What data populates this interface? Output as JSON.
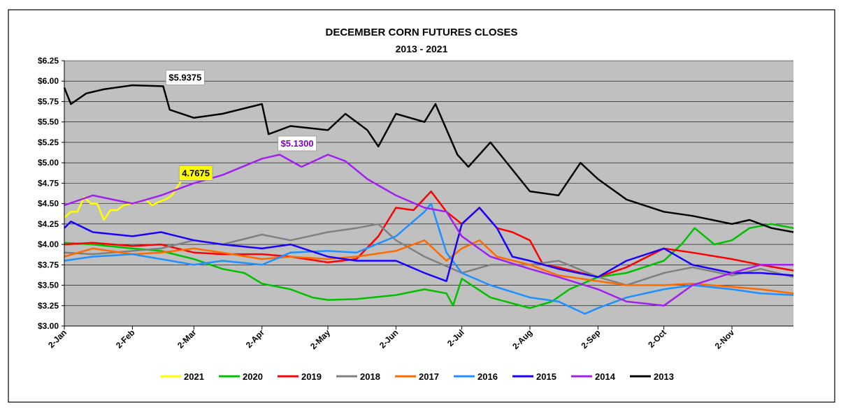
{
  "chart_data": {
    "type": "line",
    "title": "DECEMBER CORN FUTURES CLOSES",
    "subtitle": "2013 - 2021",
    "xlabel": "",
    "ylabel": "",
    "x_ticks": [
      "2-Jan",
      "2-Feb",
      "2-Mar",
      "2-Apr",
      "2-May",
      "2-Jun",
      "2-Jul",
      "2-Aug",
      "2-Sep",
      "2-Oct",
      "2-Nov"
    ],
    "x_domain": [
      "2-Jan",
      "30-Nov"
    ],
    "y_ticks": [
      "$3.00",
      "$3.25",
      "$3.50",
      "$3.75",
      "$4.00",
      "$4.25",
      "$4.50",
      "$4.75",
      "$5.00",
      "$5.25",
      "$5.50",
      "$5.75",
      "$6.00",
      "$6.25"
    ],
    "ylim": [
      3.0,
      6.25
    ],
    "grid": "horizontal",
    "plot_background": "#c0c0c0",
    "legend_position": "bottom",
    "annotations": [
      {
        "text": "$5.9375",
        "series": "2013",
        "x": "16-Feb",
        "y": 5.9375,
        "color": "#000000",
        "background": "#ffffff"
      },
      {
        "text": "$5.1300",
        "series": "2014",
        "x": "8-Apr",
        "y": 5.13,
        "color": "#8000c0",
        "background": "#ffffff"
      },
      {
        "text": "4.7675",
        "series": "2021",
        "x": "22-Feb",
        "y": 4.7675,
        "color": "#000000",
        "background": "#ffff00"
      }
    ],
    "series": [
      {
        "name": "2021",
        "color": "#ffff00",
        "points": [
          [
            "2-Jan",
            4.33
          ],
          [
            "5-Jan",
            4.4
          ],
          [
            "8-Jan",
            4.4
          ],
          [
            "11-Jan",
            4.58
          ],
          [
            "14-Jan",
            4.5
          ],
          [
            "17-Jan",
            4.5
          ],
          [
            "20-Jan",
            4.3
          ],
          [
            "23-Jan",
            4.42
          ],
          [
            "26-Jan",
            4.42
          ],
          [
            "29-Jan",
            4.48
          ],
          [
            "2-Feb",
            4.5
          ],
          [
            "5-Feb",
            4.52
          ],
          [
            "8-Feb",
            4.55
          ],
          [
            "11-Feb",
            4.48
          ],
          [
            "14-Feb",
            4.52
          ],
          [
            "17-Feb",
            4.55
          ],
          [
            "20-Feb",
            4.6
          ],
          [
            "24-Feb",
            4.7675
          ]
        ]
      },
      {
        "name": "2020",
        "color": "#00c000",
        "points": [
          [
            "2-Jan",
            4.02
          ],
          [
            "15-Jan",
            4.0
          ],
          [
            "2-Feb",
            3.95
          ],
          [
            "15-Feb",
            3.92
          ],
          [
            "2-Mar",
            3.82
          ],
          [
            "15-Mar",
            3.7
          ],
          [
            "25-Mar",
            3.65
          ],
          [
            "2-Apr",
            3.52
          ],
          [
            "15-Apr",
            3.45
          ],
          [
            "25-Apr",
            3.35
          ],
          [
            "2-May",
            3.32
          ],
          [
            "15-May",
            3.33
          ],
          [
            "2-Jun",
            3.38
          ],
          [
            "15-Jun",
            3.45
          ],
          [
            "25-Jun",
            3.4
          ],
          [
            "28-Jun",
            3.25
          ],
          [
            "2-Jul",
            3.58
          ],
          [
            "15-Jul",
            3.35
          ],
          [
            "2-Aug",
            3.22
          ],
          [
            "12-Aug",
            3.3
          ],
          [
            "20-Aug",
            3.45
          ],
          [
            "2-Sep",
            3.6
          ],
          [
            "15-Sep",
            3.65
          ],
          [
            "2-Oct",
            3.8
          ],
          [
            "10-Oct",
            4.0
          ],
          [
            "16-Oct",
            4.2
          ],
          [
            "25-Oct",
            4.0
          ],
          [
            "2-Nov",
            4.05
          ],
          [
            "10-Nov",
            4.2
          ],
          [
            "20-Nov",
            4.25
          ],
          [
            "30-Nov",
            4.2
          ]
        ]
      },
      {
        "name": "2019",
        "color": "#ff0000",
        "points": [
          [
            "2-Jan",
            4.0
          ],
          [
            "15-Jan",
            4.02
          ],
          [
            "2-Feb",
            3.98
          ],
          [
            "15-Feb",
            4.0
          ],
          [
            "2-Mar",
            3.9
          ],
          [
            "15-Mar",
            3.88
          ],
          [
            "2-Apr",
            3.88
          ],
          [
            "15-Apr",
            3.85
          ],
          [
            "2-May",
            3.78
          ],
          [
            "15-May",
            3.82
          ],
          [
            "25-May",
            4.1
          ],
          [
            "2-Jun",
            4.45
          ],
          [
            "10-Jun",
            4.42
          ],
          [
            "18-Jun",
            4.65
          ],
          [
            "25-Jun",
            4.4
          ],
          [
            "2-Jul",
            4.25
          ],
          [
            "10-Jul",
            4.45
          ],
          [
            "18-Jul",
            4.2
          ],
          [
            "25-Jul",
            4.15
          ],
          [
            "2-Aug",
            4.05
          ],
          [
            "8-Aug",
            3.75
          ],
          [
            "15-Aug",
            3.72
          ],
          [
            "2-Sep",
            3.6
          ],
          [
            "15-Sep",
            3.72
          ],
          [
            "2-Oct",
            3.95
          ],
          [
            "15-Oct",
            3.9
          ],
          [
            "2-Nov",
            3.82
          ],
          [
            "15-Nov",
            3.75
          ],
          [
            "30-Nov",
            3.68
          ]
        ]
      },
      {
        "name": "2018",
        "color": "#808080",
        "points": [
          [
            "2-Jan",
            3.9
          ],
          [
            "15-Jan",
            3.88
          ],
          [
            "2-Feb",
            3.92
          ],
          [
            "15-Feb",
            3.95
          ],
          [
            "2-Mar",
            4.05
          ],
          [
            "15-Mar",
            4.0
          ],
          [
            "2-Apr",
            4.12
          ],
          [
            "15-Apr",
            4.05
          ],
          [
            "2-May",
            4.15
          ],
          [
            "15-May",
            4.2
          ],
          [
            "25-May",
            4.25
          ],
          [
            "2-Jun",
            4.05
          ],
          [
            "15-Jun",
            3.85
          ],
          [
            "2-Jul",
            3.65
          ],
          [
            "15-Jul",
            3.75
          ],
          [
            "2-Aug",
            3.75
          ],
          [
            "15-Aug",
            3.8
          ],
          [
            "2-Sep",
            3.6
          ],
          [
            "15-Sep",
            3.5
          ],
          [
            "2-Oct",
            3.65
          ],
          [
            "15-Oct",
            3.72
          ],
          [
            "2-Nov",
            3.62
          ],
          [
            "15-Nov",
            3.7
          ],
          [
            "30-Nov",
            3.6
          ]
        ]
      },
      {
        "name": "2017",
        "color": "#ff6a00",
        "points": [
          [
            "2-Jan",
            3.85
          ],
          [
            "15-Jan",
            3.95
          ],
          [
            "2-Feb",
            3.88
          ],
          [
            "15-Feb",
            3.9
          ],
          [
            "2-Mar",
            3.95
          ],
          [
            "15-Mar",
            3.9
          ],
          [
            "2-Apr",
            3.82
          ],
          [
            "15-Apr",
            3.85
          ],
          [
            "2-May",
            3.82
          ],
          [
            "15-May",
            3.85
          ],
          [
            "2-Jun",
            3.92
          ],
          [
            "15-Jun",
            4.05
          ],
          [
            "25-Jun",
            3.8
          ],
          [
            "2-Jul",
            3.95
          ],
          [
            "10-Jul",
            4.05
          ],
          [
            "18-Jul",
            3.85
          ],
          [
            "2-Aug",
            3.75
          ],
          [
            "15-Aug",
            3.62
          ],
          [
            "2-Sep",
            3.55
          ],
          [
            "15-Sep",
            3.5
          ],
          [
            "2-Oct",
            3.5
          ],
          [
            "15-Oct",
            3.52
          ],
          [
            "2-Nov",
            3.48
          ],
          [
            "15-Nov",
            3.45
          ],
          [
            "30-Nov",
            3.4
          ]
        ]
      },
      {
        "name": "2016",
        "color": "#1e90ff",
        "points": [
          [
            "2-Jan",
            3.8
          ],
          [
            "15-Jan",
            3.85
          ],
          [
            "2-Feb",
            3.88
          ],
          [
            "15-Feb",
            3.82
          ],
          [
            "2-Mar",
            3.75
          ],
          [
            "15-Mar",
            3.8
          ],
          [
            "2-Apr",
            3.75
          ],
          [
            "15-Apr",
            3.9
          ],
          [
            "2-May",
            3.92
          ],
          [
            "15-May",
            3.9
          ],
          [
            "2-Jun",
            4.1
          ],
          [
            "15-Jun",
            4.4
          ],
          [
            "18-Jun",
            4.5
          ],
          [
            "25-Jun",
            3.9
          ],
          [
            "2-Jul",
            3.65
          ],
          [
            "15-Jul",
            3.5
          ],
          [
            "2-Aug",
            3.35
          ],
          [
            "15-Aug",
            3.3
          ],
          [
            "27-Aug",
            3.15
          ],
          [
            "2-Sep",
            3.22
          ],
          [
            "15-Sep",
            3.35
          ],
          [
            "2-Oct",
            3.45
          ],
          [
            "15-Oct",
            3.5
          ],
          [
            "2-Nov",
            3.45
          ],
          [
            "15-Nov",
            3.4
          ],
          [
            "30-Nov",
            3.38
          ]
        ]
      },
      {
        "name": "2015",
        "color": "#1a00ff",
        "points": [
          [
            "2-Jan",
            4.2
          ],
          [
            "5-Jan",
            4.28
          ],
          [
            "15-Jan",
            4.15
          ],
          [
            "2-Feb",
            4.1
          ],
          [
            "15-Feb",
            4.15
          ],
          [
            "2-Mar",
            4.05
          ],
          [
            "15-Mar",
            4.0
          ],
          [
            "2-Apr",
            3.95
          ],
          [
            "15-Apr",
            4.0
          ],
          [
            "2-May",
            3.85
          ],
          [
            "15-May",
            3.8
          ],
          [
            "2-Jun",
            3.8
          ],
          [
            "15-Jun",
            3.65
          ],
          [
            "25-Jun",
            3.55
          ],
          [
            "2-Jul",
            4.25
          ],
          [
            "10-Jul",
            4.45
          ],
          [
            "18-Jul",
            4.2
          ],
          [
            "25-Jul",
            3.85
          ],
          [
            "2-Aug",
            3.8
          ],
          [
            "15-Aug",
            3.7
          ],
          [
            "2-Sep",
            3.6
          ],
          [
            "15-Sep",
            3.8
          ],
          [
            "2-Oct",
            3.95
          ],
          [
            "15-Oct",
            3.75
          ],
          [
            "2-Nov",
            3.65
          ],
          [
            "15-Nov",
            3.65
          ],
          [
            "30-Nov",
            3.62
          ]
        ]
      },
      {
        "name": "2014",
        "color": "#a020f0",
        "points": [
          [
            "2-Jan",
            4.48
          ],
          [
            "15-Jan",
            4.6
          ],
          [
            "2-Feb",
            4.5
          ],
          [
            "15-Feb",
            4.6
          ],
          [
            "2-Mar",
            4.75
          ],
          [
            "15-Mar",
            4.85
          ],
          [
            "2-Apr",
            5.05
          ],
          [
            "10-Apr",
            5.1
          ],
          [
            "20-Apr",
            4.95
          ],
          [
            "2-May",
            5.1
          ],
          [
            "10-May",
            5.02
          ],
          [
            "20-May",
            4.8
          ],
          [
            "2-Jun",
            4.6
          ],
          [
            "15-Jun",
            4.45
          ],
          [
            "25-Jun",
            4.4
          ],
          [
            "2-Jul",
            4.1
          ],
          [
            "15-Jul",
            3.85
          ],
          [
            "2-Aug",
            3.7
          ],
          [
            "15-Aug",
            3.6
          ],
          [
            "2-Sep",
            3.45
          ],
          [
            "15-Sep",
            3.3
          ],
          [
            "2-Oct",
            3.25
          ],
          [
            "15-Oct",
            3.5
          ],
          [
            "2-Nov",
            3.65
          ],
          [
            "15-Nov",
            3.75
          ],
          [
            "30-Nov",
            3.75
          ]
        ]
      },
      {
        "name": "2013",
        "color": "#000000",
        "points": [
          [
            "2-Jan",
            5.92
          ],
          [
            "5-Jan",
            5.72
          ],
          [
            "12-Jan",
            5.85
          ],
          [
            "20-Jan",
            5.9
          ],
          [
            "2-Feb",
            5.95
          ],
          [
            "16-Feb",
            5.9375
          ],
          [
            "19-Feb",
            5.65
          ],
          [
            "2-Mar",
            5.55
          ],
          [
            "15-Mar",
            5.6
          ],
          [
            "2-Apr",
            5.72
          ],
          [
            "5-Apr",
            5.35
          ],
          [
            "15-Apr",
            5.45
          ],
          [
            "2-May",
            5.4
          ],
          [
            "10-May",
            5.6
          ],
          [
            "20-May",
            5.4
          ],
          [
            "25-May",
            5.2
          ],
          [
            "2-Jun",
            5.6
          ],
          [
            "15-Jun",
            5.5
          ],
          [
            "20-Jun",
            5.72
          ],
          [
            "30-Jun",
            5.1
          ],
          [
            "5-Jul",
            4.95
          ],
          [
            "15-Jul",
            5.25
          ],
          [
            "2-Aug",
            4.65
          ],
          [
            "15-Aug",
            4.6
          ],
          [
            "25-Aug",
            5.0
          ],
          [
            "2-Sep",
            4.8
          ],
          [
            "15-Sep",
            4.55
          ],
          [
            "2-Oct",
            4.4
          ],
          [
            "15-Oct",
            4.35
          ],
          [
            "2-Nov",
            4.25
          ],
          [
            "10-Nov",
            4.3
          ],
          [
            "20-Nov",
            4.2
          ],
          [
            "30-Nov",
            4.15
          ]
        ]
      }
    ]
  }
}
